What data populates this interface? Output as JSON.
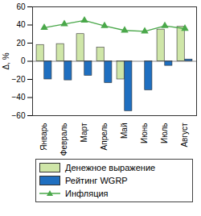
{
  "chart_data": {
    "type": "bar",
    "ylabel": "Δ, %",
    "categories": [
      "Январь",
      "Февраль",
      "Март",
      "Апрель",
      "Май",
      "Июнь",
      "Июль",
      "Август"
    ],
    "series": [
      {
        "name": "Денежное выражение",
        "type": "bar",
        "color": "#cfe6a8",
        "values": [
          18,
          19,
          30,
          15,
          -20,
          0,
          35,
          38
        ]
      },
      {
        "name": "Рейтинг WGRP",
        "type": "bar",
        "color": "#1f6fc0",
        "values": [
          -20,
          -21,
          -16,
          -24,
          -55,
          -32,
          -5,
          2
        ]
      },
      {
        "name": "Инфляция",
        "type": "line",
        "color": "#4aa84a",
        "marker": "triangle",
        "values": [
          37,
          41,
          45,
          39,
          34,
          33,
          39,
          36
        ]
      }
    ],
    "ylim": [
      -60,
      60
    ],
    "yticks": [
      -60,
      -40,
      -20,
      0,
      20,
      40,
      60
    ],
    "grid": false,
    "legend": "bottom"
  }
}
